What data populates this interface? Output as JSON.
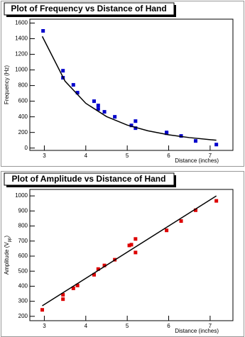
{
  "chart_data": [
    {
      "type": "scatter",
      "title": "Plot of Frequency vs Distance of Hand",
      "x_label": "Distance (inches)",
      "y_label": "Frequency (Hz)",
      "xlim": [
        2.65,
        7.55
      ],
      "xticks": [
        3,
        4,
        5,
        6,
        7
      ],
      "ylim": [
        -30,
        1650
      ],
      "yticks": [
        0,
        200,
        400,
        600,
        800,
        1000,
        1200,
        1400,
        1600
      ],
      "series": [
        {
          "mode": "markers",
          "color": "#0000cc",
          "x": [
            2.97,
            3.45,
            3.45,
            3.7,
            3.8,
            4.2,
            4.3,
            4.3,
            4.45,
            4.7,
            5.1,
            5.2,
            5.2,
            5.95,
            5.95,
            6.3,
            6.65,
            7.15
          ],
          "values": [
            1500,
            990,
            900,
            809,
            709,
            600,
            545,
            500,
            464,
            400,
            290,
            345,
            255,
            200,
            190,
            155,
            91,
            45
          ]
        },
        {
          "mode": "line",
          "color": "#000000",
          "x": [
            2.95,
            3.5,
            4,
            4.5,
            5,
            5.5,
            6,
            6.5,
            7,
            7.15
          ],
          "values": [
            1430,
            856,
            573,
            403,
            294,
            221,
            170,
            134,
            107,
            100
          ]
        }
      ]
    },
    {
      "type": "scatter",
      "title": "Plot of Amplitude vs Distance of Hand",
      "x_label": "Distance (inches)",
      "y_label": [
        "Amplitude (V",
        "pp",
        ")"
      ],
      "xlim": [
        2.65,
        7.55
      ],
      "xticks": [
        3,
        4,
        5,
        6,
        7
      ],
      "ylim": [
        171,
        1043
      ],
      "yticks": [
        200,
        300,
        400,
        500,
        600,
        700,
        800,
        900,
        1000
      ],
      "series": [
        {
          "mode": "markers",
          "color": "#dd0000",
          "x": [
            2.95,
            3.45,
            3.45,
            3.7,
            3.8,
            4.2,
            4.3,
            4.45,
            4.7,
            5.05,
            5.1,
            5.2,
            5.2,
            5.95,
            6.3,
            6.65,
            7.15
          ],
          "values": [
            243,
            343,
            314,
            386,
            405,
            476,
            514,
            538,
            576,
            671,
            676,
            714,
            624,
            771,
            833,
            905,
            967
          ]
        },
        {
          "mode": "line",
          "color": "#000000",
          "x": [
            2.95,
            7.15
          ],
          "values": [
            270,
            1000
          ]
        }
      ]
    }
  ]
}
